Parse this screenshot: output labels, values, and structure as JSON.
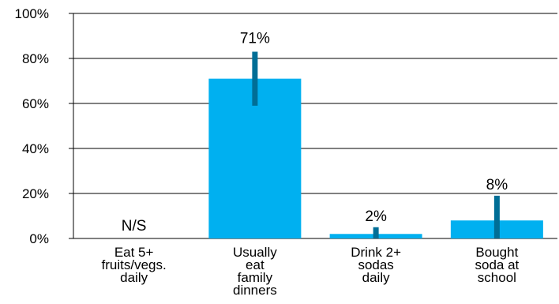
{
  "chart_data": {
    "type": "bar",
    "categories": [
      [
        "Eat 5+",
        "fruits/vegs.",
        "daily"
      ],
      [
        "Usually",
        "eat",
        "family",
        "dinners"
      ],
      [
        "Drink 2+",
        "sodas",
        "daily"
      ],
      [
        "Bought",
        "soda at",
        "school"
      ]
    ],
    "values": [
      null,
      71,
      2,
      8
    ],
    "data_labels": [
      "N/S",
      "71%",
      "2%",
      "8%"
    ],
    "error_bars": [
      null,
      [
        59,
        83
      ],
      [
        0,
        5
      ],
      [
        0,
        19
      ]
    ],
    "ylim": [
      0,
      100
    ],
    "yticks": [
      0,
      20,
      40,
      60,
      80,
      100
    ],
    "ytick_labels": [
      "0%",
      "20%",
      "40%",
      "60%",
      "80%",
      "100%"
    ],
    "grid": true,
    "colors": {
      "bar": "#00b0f0",
      "error_bar": "#006e96",
      "grid": "#000000"
    }
  }
}
